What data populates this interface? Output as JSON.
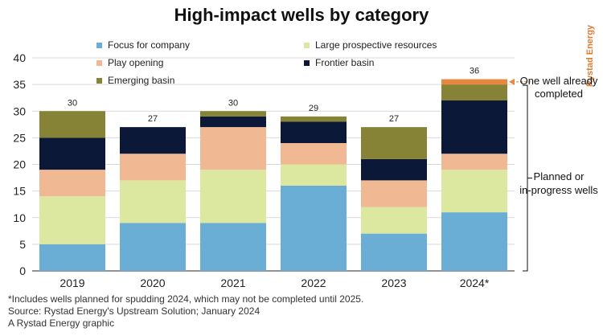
{
  "title": "High-impact wells by category",
  "brand": "Rystad Energy",
  "colors": {
    "Focus for company": "#6aaed6",
    "Large prospective resources": "#dce7a0",
    "Play opening": "#f1b894",
    "Frontier basin": "#0b1838",
    "Emerging basin": "#878336",
    "One well already completed": "#e8873f",
    "annotation": "#111111",
    "grid": "#d9d9d9"
  },
  "chart_data": {
    "type": "bar",
    "stacked": true,
    "title": "High-impact wells by category",
    "categories": [
      "2019",
      "2020",
      "2021",
      "2022",
      "2023",
      "2024*"
    ],
    "series": [
      {
        "name": "Focus for company",
        "values": [
          5,
          9,
          9,
          16,
          7,
          11
        ]
      },
      {
        "name": "Large prospective resources",
        "values": [
          9,
          8,
          10,
          4,
          5,
          8
        ]
      },
      {
        "name": "Play opening",
        "values": [
          5,
          5,
          8,
          4,
          5,
          3
        ]
      },
      {
        "name": "Frontier basin",
        "values": [
          6,
          5,
          2,
          4,
          4,
          10
        ]
      },
      {
        "name": "Emerging basin",
        "values": [
          5,
          0,
          1,
          1,
          6,
          3
        ]
      },
      {
        "name": "One well already completed",
        "values": [
          0,
          0,
          0,
          0,
          0,
          1
        ],
        "in_legend": false
      }
    ],
    "totals": [
      "30",
      "27",
      "30",
      "29",
      "27",
      "36"
    ],
    "legend": [
      "Focus for company",
      "Large prospective resources",
      "Play opening",
      "Frontier basin",
      "Emerging basin"
    ],
    "y_ticks": [
      "0",
      "5",
      "10",
      "15",
      "20",
      "25",
      "30",
      "35",
      "40"
    ],
    "ylim": [
      0,
      40
    ],
    "xlabel": "",
    "ylabel": "",
    "grid": true,
    "annotations": {
      "completed": [
        "One well already",
        "completed"
      ],
      "planned": [
        "Planned or",
        "in-progress wells"
      ]
    }
  },
  "footnotes": [
    "*Includes wells planned for spudding 2024, which may not be completed until 2025.",
    "Source: Rystad Energy's Upstream Solution; January 2024",
    "A Rystad Energy graphic"
  ]
}
